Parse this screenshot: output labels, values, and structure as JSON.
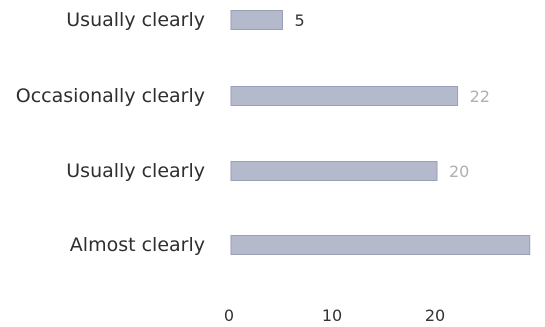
{
  "chart_data": {
    "type": "bar",
    "orientation": "horizontal",
    "categories": [
      "Usually clearly",
      "Occasionally clearly",
      "Usually clearly",
      "Almost clearly"
    ],
    "values": [
      5,
      22,
      20,
      29
    ],
    "data_labels": [
      "5",
      "22",
      "20",
      ""
    ],
    "x_ticks": [
      "0",
      "10",
      "20",
      ""
    ],
    "xlim": [
      0,
      30
    ],
    "grid": false,
    "legend": "none",
    "title": "",
    "xlabel": "",
    "ylabel": "",
    "colors": {
      "bar": "#b4b9cc",
      "bar_edge": "#9aa0b8",
      "text": "#2e2e2e",
      "data_label_strong": "#333333",
      "data_label_faint": "#b0b0b0"
    }
  }
}
